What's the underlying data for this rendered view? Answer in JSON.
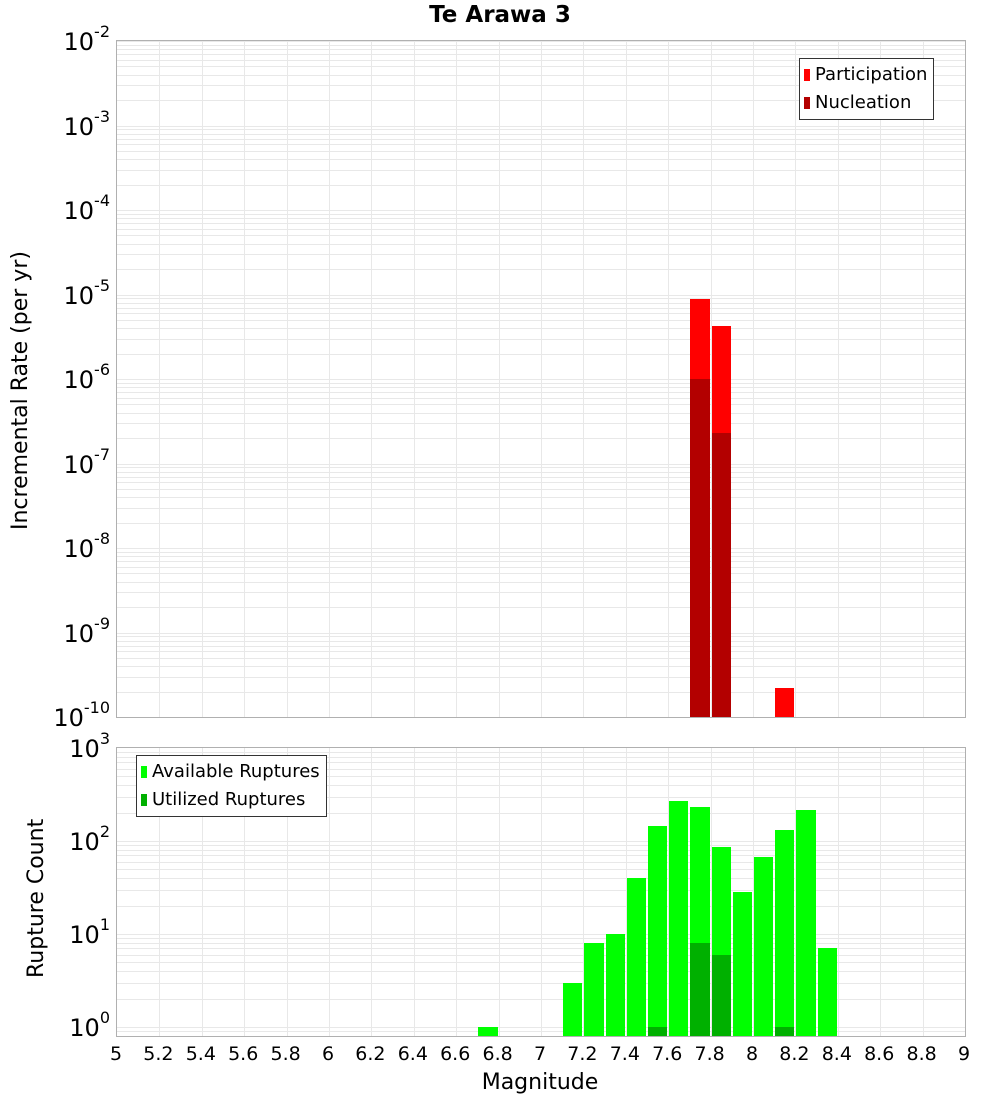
{
  "title": "Te Arawa 3",
  "colors": {
    "participation": "#ff0000",
    "nucleation": "#b30000",
    "available": "#00ff00",
    "utilized": "#00b000"
  },
  "chart_data": [
    {
      "type": "bar",
      "title": "Te Arawa 3",
      "xlabel": "Magnitude",
      "ylabel": "Incremental Rate (per yr)",
      "yscale": "log",
      "ylim": [
        1e-10,
        0.01
      ],
      "xlim": [
        5,
        9
      ],
      "legend_position": "upper right",
      "series": [
        {
          "name": "Participation",
          "x": [
            7.75,
            7.85,
            8.15
          ],
          "values": [
            8.9e-06,
            4.2e-06,
            2.2e-10
          ]
        },
        {
          "name": "Nucleation",
          "x": [
            7.75,
            7.85
          ],
          "values": [
            1e-06,
            2.3e-07
          ]
        }
      ]
    },
    {
      "type": "bar",
      "xlabel": "Magnitude",
      "ylabel": "Rupture Count",
      "yscale": "log",
      "ylim": [
        0.8,
        1000
      ],
      "xlim": [
        5,
        9
      ],
      "legend_position": "upper left",
      "series": [
        {
          "name": "Available Ruptures",
          "x": [
            6.75,
            7.15,
            7.25,
            7.35,
            7.45,
            7.55,
            7.65,
            7.75,
            7.85,
            7.95,
            8.05,
            8.15,
            8.25,
            8.35
          ],
          "values": [
            1,
            3,
            8,
            10,
            40,
            145,
            270,
            230,
            87,
            28,
            67,
            130,
            215,
            7
          ]
        },
        {
          "name": "Utilized Ruptures",
          "x": [
            7.55,
            7.75,
            7.85,
            8.15
          ],
          "values": [
            1,
            8,
            6,
            1
          ]
        }
      ]
    }
  ],
  "top_axis": {
    "ylabel": "Incremental Rate (per yr)",
    "ticks": [
      {
        "base": "10",
        "exp": "-2"
      },
      {
        "base": "10",
        "exp": "-3"
      },
      {
        "base": "10",
        "exp": "-4"
      },
      {
        "base": "10",
        "exp": "-5"
      },
      {
        "base": "10",
        "exp": "-6"
      },
      {
        "base": "10",
        "exp": "-7"
      },
      {
        "base": "10",
        "exp": "-8"
      },
      {
        "base": "10",
        "exp": "-9"
      },
      {
        "base": "10",
        "exp": "-10"
      }
    ]
  },
  "bottom_axis": {
    "ylabel": "Rupture Count",
    "ticks": [
      {
        "base": "10",
        "exp": "3"
      },
      {
        "base": "10",
        "exp": "2"
      },
      {
        "base": "10",
        "exp": "1"
      },
      {
        "base": "10",
        "exp": "0"
      }
    ]
  },
  "x_axis": {
    "label": "Magnitude",
    "ticks": [
      "5",
      "5.2",
      "5.4",
      "5.6",
      "5.8",
      "6",
      "6.2",
      "6.4",
      "6.6",
      "6.8",
      "7",
      "7.2",
      "7.4",
      "7.6",
      "7.8",
      "8",
      "8.2",
      "8.4",
      "8.6",
      "8.8",
      "9"
    ]
  },
  "legend_top": [
    "Participation",
    "Nucleation"
  ],
  "legend_bottom": [
    "Available Ruptures",
    "Utilized Ruptures"
  ]
}
